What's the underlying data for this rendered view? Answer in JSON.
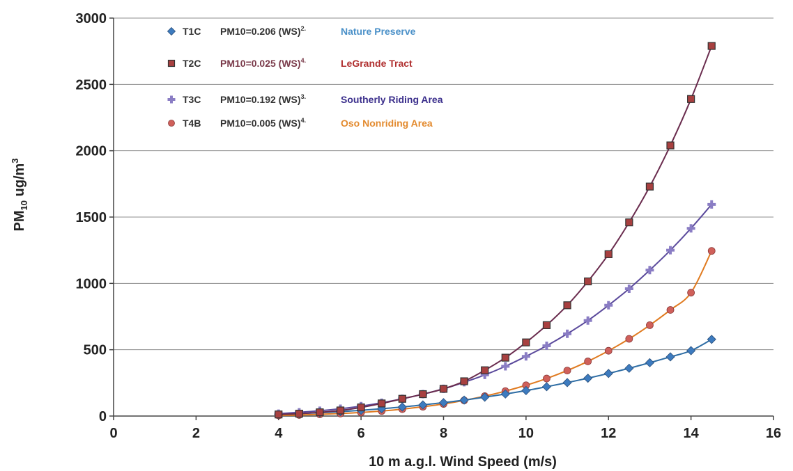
{
  "chart_data": {
    "type": "line",
    "xlabel": "10 m a.g.l. Wind Speed (m/s)",
    "ylabel_main": "PM",
    "ylabel_sub": "10",
    "ylabel_unit": " ug/m",
    "ylabel_sup": "3",
    "xlim": [
      0,
      16
    ],
    "ylim": [
      0,
      3000
    ],
    "xticks": [
      "0",
      "2",
      "4",
      "6",
      "8",
      "10",
      "12",
      "14",
      "16"
    ],
    "yticks": [
      "0",
      "500",
      "1000",
      "1500",
      "2000",
      "2500",
      "3000"
    ],
    "grid": "horizontal",
    "legend_position": "top-left",
    "x": [
      4,
      4.5,
      5,
      5.5,
      6,
      6.5,
      7,
      7.5,
      8,
      8.5,
      9,
      9.5,
      10,
      10.5,
      11,
      11.5,
      12,
      12.5,
      13,
      13.5,
      14,
      14.5
    ],
    "series": [
      {
        "name": "T1C",
        "formula": "PM10=0.206 (WS)",
        "formula_exp": "2.",
        "site": "Nature Preserve",
        "color": "#2e6da4",
        "label_color": "#4a90c8",
        "marker": "diamond",
        "marker_color": "#3d7bbf",
        "values": [
          14,
          19,
          25,
          33,
          43,
          55,
          68,
          84,
          101,
          120,
          142,
          166,
          192,
          221,
          252,
          285,
          321,
          360,
          402,
          446,
          493,
          578
        ]
      },
      {
        "name": "T2C",
        "formula": "PM10=0.025 (WS)",
        "formula_exp": "4.",
        "site": "LeGrande Tract",
        "color": "#6a2c4e",
        "label_color": "#b03030",
        "marker": "square",
        "marker_color": "#a84040",
        "values": [
          12,
          18,
          28,
          42,
          65,
          95,
          130,
          165,
          205,
          262,
          345,
          440,
          555,
          685,
          835,
          1015,
          1220,
          1460,
          1730,
          2040,
          2390,
          2790
        ]
      },
      {
        "name": "T3C",
        "formula": "PM10=0.192 (WS)",
        "formula_exp": "3.",
        "site": "Southerly Riding Area",
        "color": "#5b4a9c",
        "label_color": "#3b2f8c",
        "marker": "plus",
        "marker_color": "#8a7dc4",
        "values": [
          18,
          28,
          40,
          55,
          75,
          100,
          130,
          165,
          205,
          255,
          310,
          375,
          450,
          530,
          620,
          720,
          835,
          960,
          1100,
          1250,
          1415,
          1595
        ]
      },
      {
        "name": "T4B",
        "formula": "PM10=0.005 (WS)",
        "formula_exp": "4.",
        "site": "Oso Nonriding Area",
        "color": "#e07a1f",
        "label_color": "#e38a2e",
        "marker": "circle",
        "marker_color": "#d0605a",
        "values": [
          5,
          8,
          13,
          19,
          27,
          38,
          52,
          70,
          91,
          118,
          150,
          188,
          232,
          283,
          343,
          412,
          492,
          582,
          685,
          800,
          930,
          1245
        ]
      }
    ]
  }
}
